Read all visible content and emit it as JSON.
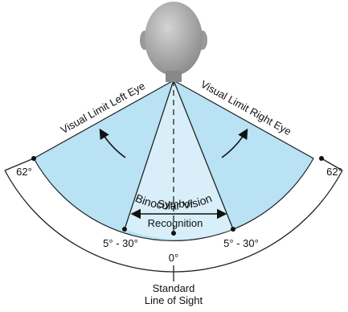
{
  "labels": {
    "left_limit": "Visual Limit Left Eye",
    "right_limit": "Visual Limit Right Eye",
    "binocular": "Binocular Vision",
    "symbol_line1": "Symbol",
    "symbol_line2": "Recognition",
    "left_angle": "62°",
    "right_angle": "62°",
    "left_symbol_angle": "5° - 30°",
    "right_symbol_angle": "5° - 30°",
    "center_angle": "0°",
    "sight_line1": "Standard",
    "sight_line2": "Line of Sight"
  }
}
